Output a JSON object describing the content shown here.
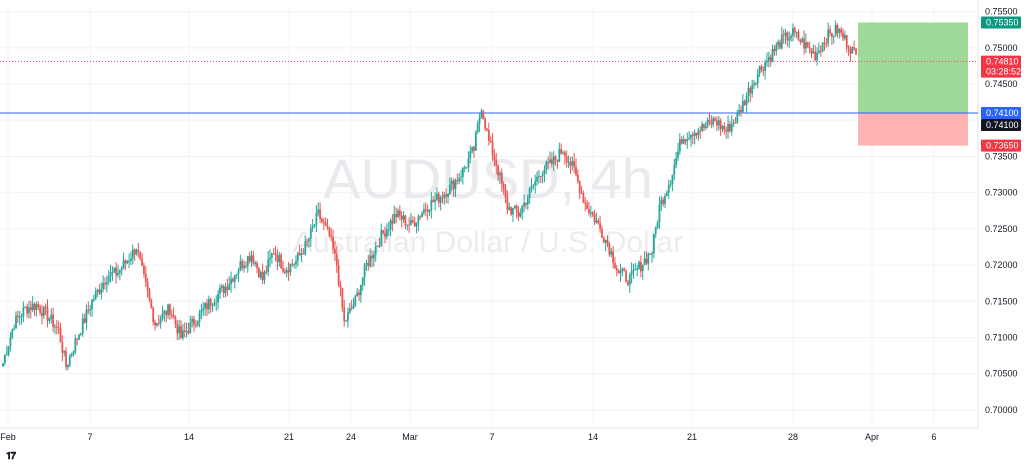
{
  "chart_data": {
    "type": "candlestick",
    "symbol": "AUDUSD, 4h",
    "description": "Australian Dollar / U.S. Dollar",
    "ylim": [
      0.6975,
      0.7555
    ],
    "y_ticks": [
      "0.75500",
      "0.75000",
      "0.74500",
      "0.74000",
      "0.73500",
      "0.73000",
      "0.72500",
      "0.72000",
      "0.71500",
      "0.71000",
      "0.70500",
      "0.70000"
    ],
    "y_tick_values": [
      0.755,
      0.75,
      0.745,
      0.74,
      0.735,
      0.73,
      0.725,
      0.72,
      0.715,
      0.71,
      0.705,
      0.7
    ],
    "x_labels": [
      "Feb",
      "7",
      "14",
      "21",
      "24",
      "Mar",
      "7",
      "14",
      "21",
      "28",
      "Apr",
      "6"
    ],
    "colors": {
      "up": "#26a69a",
      "down": "#ef5350",
      "line": "#2962ff",
      "target_zone": "#9fd99a",
      "stop_zone": "#ffb3b3"
    },
    "horizontal_line": 0.741,
    "current_price": 0.7481,
    "price_tags": [
      {
        "text": "0.75350",
        "value": 0.7535,
        "color": "#089981"
      },
      {
        "text": "0.74810",
        "value": 0.7481,
        "color": "#f23645"
      },
      {
        "text": "0.74100",
        "value": 0.741,
        "color": "#2962ff"
      },
      {
        "text": "0.73650",
        "value": 0.7365,
        "color": "#f23645"
      }
    ],
    "countdown": "03:28:52",
    "crosshair_value": "0.74100",
    "position": {
      "entry": 0.741,
      "target": 0.7535,
      "stop": 0.7365
    },
    "closes_anchor": [
      [
        0,
        0.7065
      ],
      [
        6,
        0.712
      ],
      [
        12,
        0.714
      ],
      [
        18,
        0.7145
      ],
      [
        24,
        0.713
      ],
      [
        30,
        0.711
      ],
      [
        34,
        0.706
      ],
      [
        40,
        0.71
      ],
      [
        48,
        0.715
      ],
      [
        56,
        0.7185
      ],
      [
        62,
        0.719
      ],
      [
        68,
        0.721
      ],
      [
        72,
        0.7225
      ],
      [
        76,
        0.718
      ],
      [
        82,
        0.712
      ],
      [
        90,
        0.714
      ],
      [
        96,
        0.71
      ],
      [
        104,
        0.7125
      ],
      [
        112,
        0.715
      ],
      [
        120,
        0.717
      ],
      [
        128,
        0.72
      ],
      [
        134,
        0.7215
      ],
      [
        140,
        0.718
      ],
      [
        146,
        0.722
      ],
      [
        152,
        0.7195
      ],
      [
        158,
        0.7205
      ],
      [
        164,
        0.723
      ],
      [
        170,
        0.727
      ],
      [
        176,
        0.724
      ],
      [
        180,
        0.72
      ],
      [
        184,
        0.712
      ],
      [
        190,
        0.715
      ],
      [
        196,
        0.72
      ],
      [
        204,
        0.724
      ],
      [
        212,
        0.727
      ],
      [
        220,
        0.7255
      ],
      [
        228,
        0.728
      ],
      [
        236,
        0.7295
      ],
      [
        242,
        0.731
      ],
      [
        248,
        0.733
      ],
      [
        254,
        0.736
      ],
      [
        258,
        0.742
      ],
      [
        262,
        0.737
      ],
      [
        266,
        0.734
      ],
      [
        272,
        0.728
      ],
      [
        278,
        0.727
      ],
      [
        284,
        0.73
      ],
      [
        290,
        0.733
      ],
      [
        296,
        0.734
      ],
      [
        302,
        0.736
      ],
      [
        308,
        0.733
      ],
      [
        314,
        0.7285
      ],
      [
        320,
        0.726
      ],
      [
        326,
        0.723
      ],
      [
        332,
        0.719
      ],
      [
        338,
        0.718
      ],
      [
        344,
        0.72
      ],
      [
        350,
        0.722
      ],
      [
        354,
        0.728
      ],
      [
        360,
        0.732
      ],
      [
        366,
        0.7375
      ],
      [
        372,
        0.7385
      ],
      [
        378,
        0.739
      ],
      [
        384,
        0.74
      ],
      [
        390,
        0.7385
      ],
      [
        396,
        0.7405
      ],
      [
        402,
        0.744
      ],
      [
        408,
        0.747
      ],
      [
        414,
        0.749
      ],
      [
        420,
        0.751
      ],
      [
        426,
        0.752
      ],
      [
        432,
        0.7505
      ],
      [
        438,
        0.749
      ],
      [
        444,
        0.7515
      ],
      [
        450,
        0.7525
      ],
      [
        456,
        0.7505
      ],
      [
        460,
        0.7488
      ]
    ]
  }
}
